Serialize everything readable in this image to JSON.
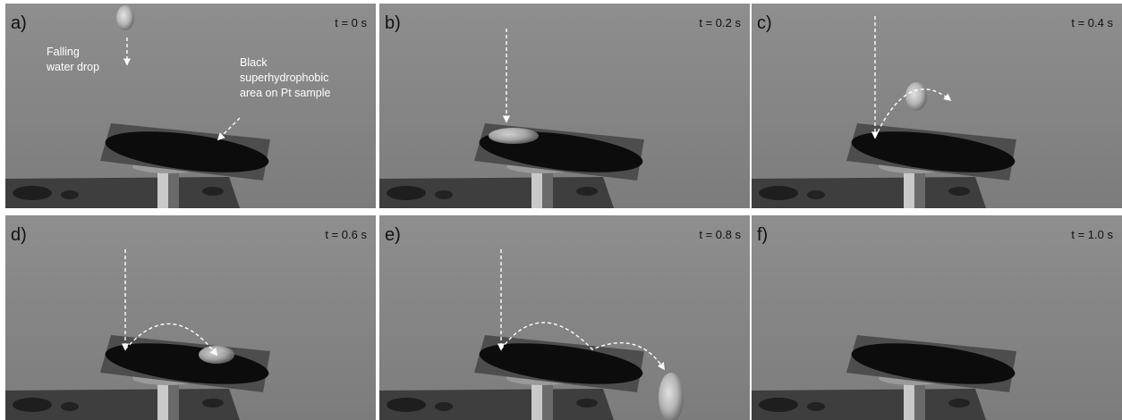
{
  "panels": [
    {
      "label": "a)",
      "time": "t = 0 s",
      "annotations": [
        {
          "lines": [
            "Falling",
            "water drop"
          ]
        },
        {
          "lines": [
            "Black",
            "superhydrophobic",
            "area on Pt sample"
          ]
        }
      ]
    },
    {
      "label": "b)",
      "time": "t = 0.2 s"
    },
    {
      "label": "c)",
      "time": "t = 0.4 s"
    },
    {
      "label": "d)",
      "time": "t = 0.6 s"
    },
    {
      "label": "e)",
      "time": "t = 0.8 s"
    },
    {
      "label": "f)",
      "time": "t = 1.0 s"
    }
  ]
}
